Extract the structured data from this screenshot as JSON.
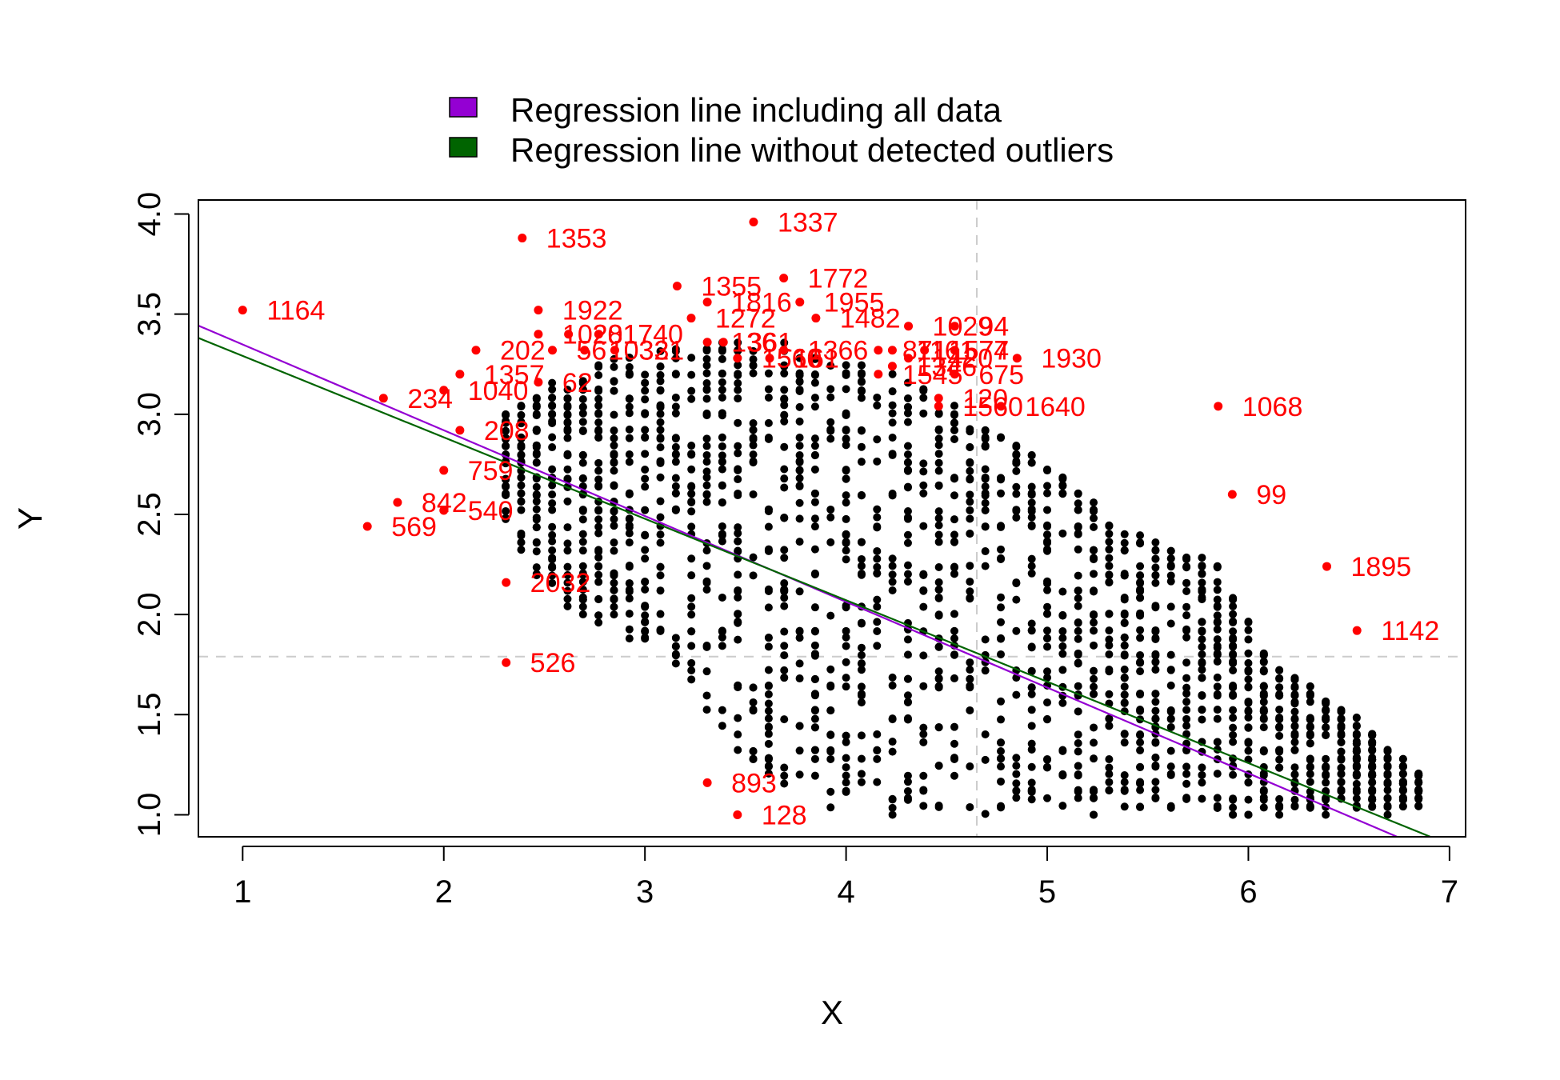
{
  "chart_data": {
    "type": "scatter",
    "title": "",
    "xlabel": "X",
    "ylabel": "Y",
    "xlim": [
      0.78,
      7.08
    ],
    "ylim": [
      0.89,
      4.07
    ],
    "xticks": [
      1,
      2,
      3,
      4,
      5,
      6,
      7
    ],
    "yticks": [
      1.0,
      1.5,
      2.0,
      2.5,
      3.0,
      3.5,
      4.0
    ],
    "xtick_labels": [
      "1",
      "2",
      "3",
      "4",
      "5",
      "6",
      "7"
    ],
    "ytick_labels": [
      "1.0",
      "1.5",
      "2.0",
      "2.5",
      "3.0",
      "3.5",
      "4.0"
    ],
    "grid": false,
    "legend_position": "top",
    "legend": [
      {
        "label": "Regression line including all data",
        "color": "#9400D3"
      },
      {
        "label": "Regression line without detected outliers",
        "color": "#006400"
      }
    ],
    "reference_lines": {
      "x": 4.65,
      "y": 1.79
    },
    "regression_lines": [
      {
        "name": "Regression line including all data",
        "color": "#9400D3",
        "slope": -0.4283,
        "intercept": 3.7767
      },
      {
        "name": "Regression line without detected outliers",
        "color": "#006400",
        "slope": -0.4067,
        "intercept": 3.6983
      }
    ],
    "inlier_color": "#000000",
    "outlier_color": "#FF0000",
    "inlier_point_count": 2100,
    "inlier_cloud_shape": [
      [
        2.3,
        2.45,
        2.98
      ],
      [
        2.55,
        2.05,
        3.15
      ],
      [
        2.85,
        1.9,
        3.28
      ],
      [
        3.1,
        1.78,
        3.33
      ],
      [
        3.35,
        1.45,
        3.36
      ],
      [
        3.6,
        1.15,
        3.38
      ],
      [
        3.85,
        1.0,
        3.3
      ],
      [
        4.1,
        1.0,
        3.25
      ],
      [
        4.35,
        1.0,
        3.18
      ],
      [
        4.6,
        1.0,
        2.98
      ],
      [
        4.85,
        1.0,
        2.85
      ],
      [
        5.1,
        1.0,
        2.65
      ],
      [
        5.35,
        1.0,
        2.45
      ],
      [
        5.6,
        1.0,
        2.32
      ],
      [
        5.85,
        1.0,
        2.25
      ],
      [
        6.1,
        1.0,
        1.78
      ],
      [
        6.35,
        1.0,
        1.6
      ],
      [
        6.6,
        1.0,
        1.42
      ],
      [
        6.85,
        1.03,
        1.22
      ]
    ],
    "inlier_jitter_y": 0.06,
    "outliers": [
      {
        "id": "1164",
        "x": 1.0,
        "y": 3.52
      },
      {
        "id": "234",
        "x": 1.7,
        "y": 3.08
      },
      {
        "id": "569",
        "x": 1.62,
        "y": 2.44
      },
      {
        "id": "842",
        "x": 1.77,
        "y": 2.56
      },
      {
        "id": "759",
        "x": 2.0,
        "y": 2.72
      },
      {
        "id": "540",
        "x": 2.0,
        "y": 2.52
      },
      {
        "id": "208",
        "x": 2.08,
        "y": 2.92
      },
      {
        "id": "1040",
        "x": 2.0,
        "y": 3.12
      },
      {
        "id": "1357",
        "x": 2.08,
        "y": 3.2
      },
      {
        "id": "202",
        "x": 2.16,
        "y": 3.32
      },
      {
        "id": "62",
        "x": 2.47,
        "y": 3.16
      },
      {
        "id": "1353",
        "x": 2.39,
        "y": 3.88
      },
      {
        "id": "1922",
        "x": 2.47,
        "y": 3.52
      },
      {
        "id": "1028",
        "x": 2.47,
        "y": 3.4
      },
      {
        "id": "2017",
        "x": 2.62,
        "y": 3.4
      },
      {
        "id": "1740",
        "x": 2.77,
        "y": 3.4
      },
      {
        "id": "56",
        "x": 2.54,
        "y": 3.32
      },
      {
        "id": "1033",
        "x": 2.7,
        "y": 3.32
      },
      {
        "id": "321",
        "x": 2.85,
        "y": 3.32
      },
      {
        "id": "2032",
        "x": 2.31,
        "y": 2.16
      },
      {
        "id": "526",
        "x": 2.31,
        "y": 1.76
      },
      {
        "id": "1355",
        "x": 3.16,
        "y": 3.64
      },
      {
        "id": "1272",
        "x": 3.23,
        "y": 3.48
      },
      {
        "id": "1816",
        "x": 3.31,
        "y": 3.56
      },
      {
        "id": "136",
        "x": 3.31,
        "y": 3.36
      },
      {
        "id": "361",
        "x": 3.39,
        "y": 3.36
      },
      {
        "id": "1560",
        "x": 3.46,
        "y": 3.28
      },
      {
        "id": "1337",
        "x": 3.54,
        "y": 3.96
      },
      {
        "id": "1772",
        "x": 3.69,
        "y": 3.68
      },
      {
        "id": "1955",
        "x": 3.77,
        "y": 3.56
      },
      {
        "id": "161",
        "x": 3.62,
        "y": 3.28
      },
      {
        "id": "1366",
        "x": 3.69,
        "y": 3.32
      },
      {
        "id": "1482",
        "x": 3.85,
        "y": 3.48
      },
      {
        "id": "871",
        "x": 4.16,
        "y": 3.32
      },
      {
        "id": "1161",
        "x": 4.23,
        "y": 3.32
      },
      {
        "id": "1577",
        "x": 4.39,
        "y": 3.32
      },
      {
        "id": "1420",
        "x": 4.31,
        "y": 3.28
      },
      {
        "id": "1545",
        "x": 4.16,
        "y": 3.2
      },
      {
        "id": "1346",
        "x": 4.23,
        "y": 3.24
      },
      {
        "id": "1029",
        "x": 4.31,
        "y": 3.44
      },
      {
        "id": "94",
        "x": 4.54,
        "y": 3.44
      },
      {
        "id": "74",
        "x": 4.54,
        "y": 3.32
      },
      {
        "id": "675",
        "x": 4.54,
        "y": 3.2
      },
      {
        "id": "120",
        "x": 4.46,
        "y": 3.08
      },
      {
        "id": "1560",
        "x": 4.46,
        "y": 3.04
      },
      {
        "id": "1640",
        "x": 4.77,
        "y": 3.04
      },
      {
        "id": "1930",
        "x": 4.85,
        "y": 3.28
      },
      {
        "id": "893",
        "x": 3.31,
        "y": 1.16
      },
      {
        "id": "128",
        "x": 3.46,
        "y": 1.0
      },
      {
        "id": "1068",
        "x": 5.85,
        "y": 3.04
      },
      {
        "id": "99",
        "x": 5.92,
        "y": 2.6
      },
      {
        "id": "1895",
        "x": 6.39,
        "y": 2.24
      },
      {
        "id": "1142",
        "x": 6.54,
        "y": 1.92
      }
    ]
  }
}
